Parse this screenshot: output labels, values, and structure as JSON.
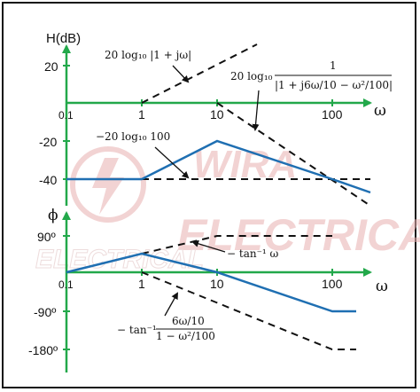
{
  "magnitude_plot": {
    "y_axis_label": "H(dB)",
    "x_axis_label": "ω",
    "x_ticks": [
      "0.1",
      "1",
      "10",
      "100"
    ],
    "y_ticks": [
      "20",
      "-20",
      "-40"
    ],
    "annotations": {
      "zero_term": "20 log₁₀ |1 + jω|",
      "constant_term": "−20 log₁₀ 100",
      "pole_term_prefix": "20 log₁₀",
      "pole_term_num": "1",
      "pole_term_den": "|1 + j6ω/10 − ω²/100|"
    }
  },
  "phase_plot": {
    "y_axis_label": "ϕ",
    "x_axis_label": "ω",
    "x_ticks": [
      "0.1",
      "1",
      "10",
      "100"
    ],
    "y_ticks": [
      "90º",
      "-90º",
      "-180º"
    ],
    "annotations": {
      "zero_term": "− tan⁻¹ ω",
      "pole_term_prefix": "− tan⁻¹",
      "pole_term_num": "6ω/10",
      "pole_term_den": "1 − ω²/100"
    }
  },
  "watermark": {
    "line1": "WIRA",
    "line2": "ELECTRICAL"
  },
  "colors": {
    "axis": "#22a84a",
    "curve": "#1f6fb2",
    "asymptote": "#111111",
    "watermark": "#e8b0b0"
  }
}
